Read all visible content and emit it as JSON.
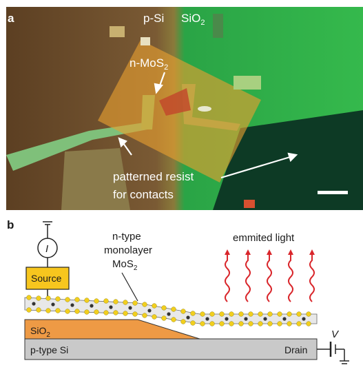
{
  "panel_a": {
    "panel_label": "a",
    "label_psi": "p-Si",
    "label_sio2_main": "SiO",
    "label_sio2_sub": "2",
    "label_nmos2_main": "n-MoS",
    "label_nmos2_sub": "2",
    "label_resist_line1": "patterned resist",
    "label_resist_line2": "for contacts"
  },
  "panel_b": {
    "panel_label": "b",
    "current_symbol": "I",
    "source_label": "Source",
    "mos2_line1": "n-type",
    "mos2_line2": "monolayer",
    "mos2_line3_main": "MoS",
    "mos2_line3_sub": "2",
    "emitted_label": "emmited light",
    "sio2_main": "SiO",
    "sio2_sub": "2",
    "psi_label": "p-type Si",
    "drain_label": "Drain",
    "voltage_symbol": "V"
  },
  "colors": {
    "optical_brown": "#6b4a2a",
    "optical_green": "#2fae45",
    "resist_orange": "#e6a23c",
    "source_yellow": "#f7c61e",
    "sio2_orange": "#ee9a45",
    "psi_gray": "#c9c9c9",
    "light_red": "#d9262b"
  }
}
